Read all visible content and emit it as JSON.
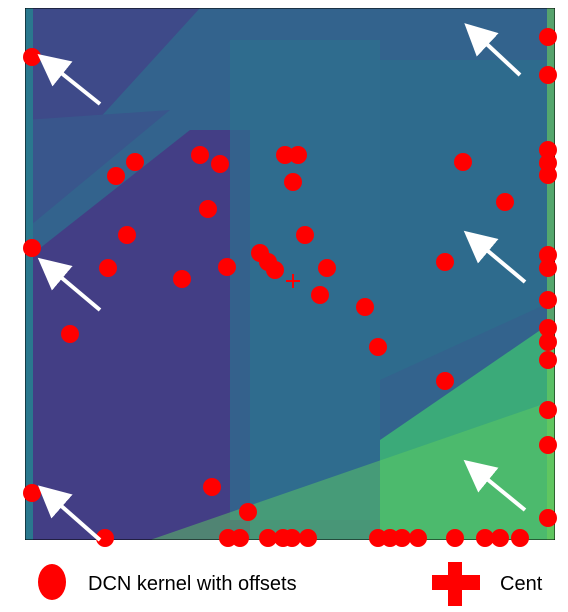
{
  "legend": {
    "items": [
      {
        "label": "DCN kernel with offsets"
      },
      {
        "label": "Cent"
      }
    ]
  }
}
